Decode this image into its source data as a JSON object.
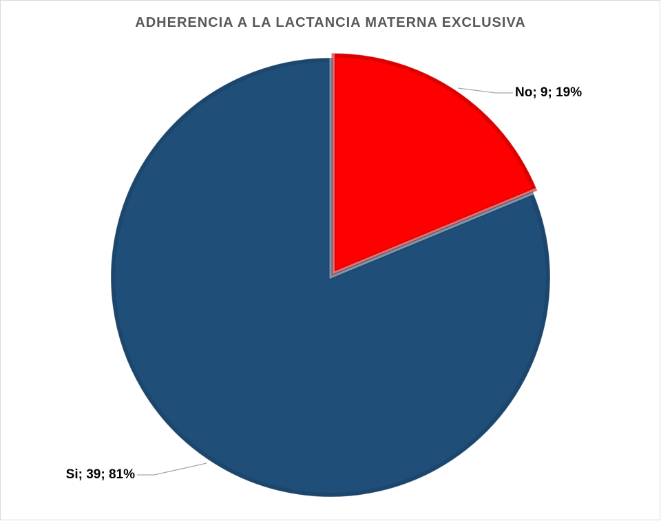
{
  "chart_data": {
    "type": "pie",
    "title": "ADHERENCIA A LA LACTANCIA MATERNA EXCLUSIVA",
    "categories": [
      "No",
      "Si"
    ],
    "values": [
      9,
      39
    ],
    "percentages": [
      19,
      81
    ],
    "labels": [
      "No; 9; 19%",
      "Si; 39; 81%"
    ],
    "colors": [
      "#ff0000",
      "#1f4e79"
    ],
    "exploded_slice": "No",
    "legend": "none"
  }
}
